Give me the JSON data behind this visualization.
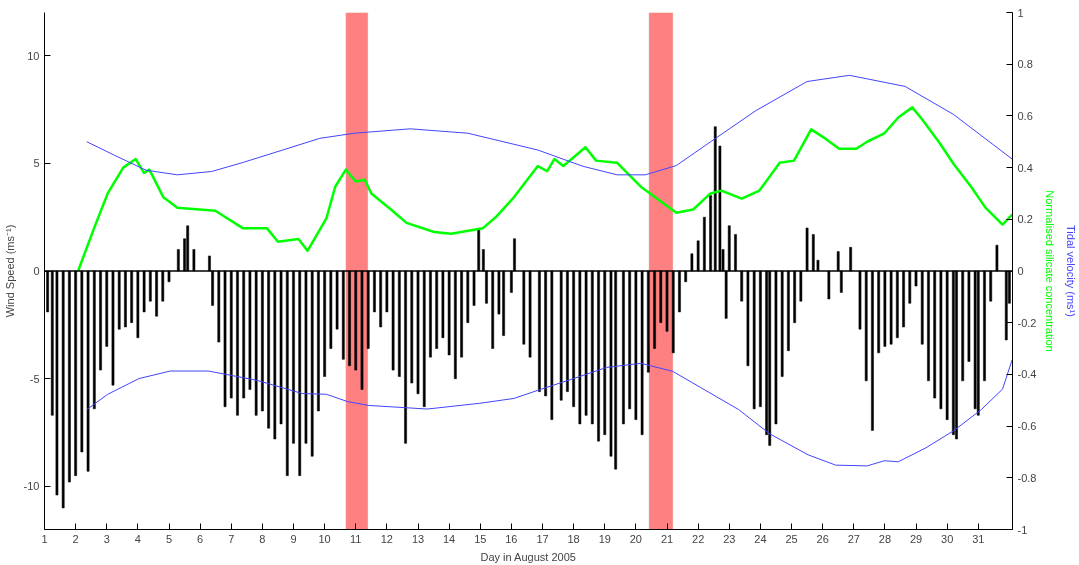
{
  "chart_data": {
    "type": "line",
    "xlabel": "Day in August 2005",
    "ylabel": "Wind Speed (ms⁻¹)",
    "y2label": "Normalised silicate concentration",
    "annotations": [
      "Tidal velocity (ms¹)"
    ],
    "xlim": [
      1,
      32.1
    ],
    "xticks": [
      1,
      2,
      3,
      4,
      5,
      6,
      7,
      8,
      9,
      10,
      11,
      12,
      13,
      14,
      15,
      16,
      17,
      18,
      19,
      20,
      21,
      22,
      23,
      24,
      25,
      26,
      27,
      28,
      29,
      30,
      31
    ],
    "ylim": [
      -12,
      12
    ],
    "yticks": [
      -10,
      -5,
      0,
      5,
      10
    ],
    "y2lim": [
      -1,
      1
    ],
    "y2ticks": [
      -1,
      -0.8,
      -0.6,
      -0.4,
      -0.2,
      0,
      0.2,
      0.4,
      0.6,
      0.8,
      1
    ],
    "grid": false,
    "ref_lines": [
      {
        "axis": "y",
        "value": 0,
        "color": "#000000"
      }
    ],
    "bands": [
      {
        "axis": "x",
        "from": 10.68,
        "to": 11.39,
        "color": "#ff8080"
      },
      {
        "axis": "x",
        "from": 20.42,
        "to": 21.19,
        "color": "#ff8080"
      }
    ],
    "series": [
      {
        "type": "bar",
        "color": "#000000",
        "x": [
          1.1,
          1.25,
          1.4,
          1.6,
          1.8,
          2.0,
          2.2,
          2.4,
          2.6,
          2.8,
          3.0,
          3.2,
          3.4,
          3.6,
          3.8,
          4.0,
          4.2,
          4.4,
          4.6,
          4.8,
          5.0,
          5.3,
          5.5,
          5.6,
          5.8,
          6.3,
          6.4,
          6.6,
          6.8,
          7.0,
          7.2,
          7.4,
          7.6,
          7.8,
          8.0,
          8.2,
          8.4,
          8.6,
          8.8,
          9.0,
          9.2,
          9.4,
          9.6,
          9.8,
          10.0,
          10.2,
          10.4,
          10.6,
          10.8,
          11.0,
          11.2,
          11.4,
          11.6,
          11.8,
          12.0,
          12.2,
          12.4,
          12.6,
          12.8,
          13.0,
          13.2,
          13.4,
          13.6,
          13.8,
          14.0,
          14.2,
          14.4,
          14.6,
          14.8,
          14.95,
          15.1,
          15.2,
          15.4,
          15.6,
          15.75,
          16.0,
          16.1,
          16.4,
          16.6,
          16.9,
          17.1,
          17.3,
          17.6,
          17.8,
          18.0,
          18.2,
          18.4,
          18.6,
          18.8,
          19.0,
          19.2,
          19.35,
          19.6,
          19.8,
          20.0,
          20.2,
          20.4,
          20.6,
          20.8,
          21.0,
          21.2,
          21.4,
          21.6,
          21.8,
          22.0,
          22.2,
          22.4,
          22.55,
          22.7,
          22.8,
          22.9,
          23.0,
          23.2,
          23.4,
          23.6,
          23.8,
          24.0,
          24.2,
          24.3,
          24.5,
          24.7,
          24.9,
          25.1,
          25.3,
          25.5,
          25.7,
          25.85,
          26.2,
          26.5,
          26.6,
          26.9,
          27.2,
          27.4,
          27.6,
          27.8,
          28.0,
          28.2,
          28.4,
          28.6,
          28.8,
          29.0,
          29.2,
          29.4,
          29.6,
          29.8,
          30.0,
          30.2,
          30.3,
          30.5,
          30.7,
          30.9,
          31.0,
          31.2,
          31.4,
          31.6,
          31.9,
          32.0
        ],
        "values": [
          -1.9,
          -6.7,
          -10.4,
          -11.0,
          -9.8,
          -9.5,
          -8.4,
          -9.3,
          -6.4,
          -4.6,
          -3.5,
          -5.3,
          -2.7,
          -2.6,
          -2.4,
          -3.1,
          -1.9,
          -1.4,
          -2.1,
          -1.4,
          -0.5,
          1.0,
          1.5,
          2.1,
          1.0,
          0.7,
          -1.6,
          -3.3,
          -6.3,
          -5.9,
          -6.7,
          -5.9,
          -5.5,
          -6.7,
          -6.5,
          -7.3,
          -7.8,
          -7.1,
          -9.5,
          -8.0,
          -9.5,
          -8.0,
          -8.6,
          -6.5,
          -4.9,
          -3.6,
          -2.7,
          -4.1,
          -4.4,
          -4.6,
          -5.5,
          -3.6,
          -1.9,
          -2.6,
          -1.9,
          -4.6,
          -4.9,
          -8.0,
          -5.2,
          -5.7,
          -6.3,
          -4.0,
          -3.6,
          -3.1,
          -3.9,
          -5.0,
          -4.0,
          -2.4,
          -1.6,
          1.9,
          1.0,
          -1.5,
          -3.6,
          -2.0,
          -3.0,
          -1.0,
          1.5,
          -3.4,
          -4.0,
          -5.6,
          -5.8,
          -6.9,
          -6.0,
          -5.6,
          -6.3,
          -7.1,
          -6.7,
          -7.1,
          -7.9,
          -7.6,
          -8.6,
          -9.2,
          -7.1,
          -6.4,
          -6.9,
          -7.6,
          -4.7,
          -3.6,
          -2.4,
          -2.8,
          -3.8,
          -1.9,
          -0.5,
          0.8,
          1.4,
          2.5,
          3.5,
          6.7,
          5.8,
          1.0,
          -2.2,
          2.1,
          1.7,
          -1.4,
          -4.4,
          -6.4,
          -6.3,
          -7.6,
          -8.1,
          -7.1,
          -4.9,
          -3.7,
          -2.4,
          -1.4,
          2.0,
          1.7,
          0.5,
          -1.3,
          0.9,
          -1.0,
          1.1,
          -2.7,
          -5.1,
          -7.4,
          -3.8,
          -3.5,
          -3.4,
          -3.1,
          -2.6,
          -1.5,
          -0.7,
          -3.4,
          -5.1,
          -5.9,
          -6.4,
          -6.9,
          -7.6,
          -7.8,
          -5.1,
          -4.2,
          -6.4,
          -6.7,
          -5.1,
          -1.4,
          1.2,
          -3.2,
          -1.5
        ]
      },
      {
        "axis": "y2",
        "color": "#00ff00",
        "x": [
          2.08,
          2.59,
          3.03,
          3.53,
          3.93,
          4.2,
          4.37,
          4.82,
          5.27,
          6.49,
          7.38,
          8.15,
          8.5,
          9.16,
          9.45,
          10.06,
          10.34,
          10.68,
          11.0,
          11.29,
          11.5,
          12.18,
          12.63,
          13.52,
          14.07,
          15.08,
          15.53,
          16.08,
          16.85,
          17.15,
          17.38,
          17.67,
          18.38,
          18.72,
          19.39,
          20.16,
          21.3,
          21.84,
          22.4,
          22.75,
          23.4,
          23.97,
          24.62,
          25.08,
          25.63,
          26.08,
          26.53,
          27.08,
          27.43,
          27.98,
          28.43,
          28.88,
          29.2,
          29.77,
          30.22,
          30.77,
          31.23,
          31.78,
          32.09
        ],
        "values": [
          0,
          0.165,
          0.3,
          0.4,
          0.433,
          0.379,
          0.392,
          0.285,
          0.245,
          0.233,
          0.165,
          0.165,
          0.113,
          0.124,
          0.078,
          0.205,
          0.326,
          0.392,
          0.346,
          0.353,
          0.3,
          0.233,
          0.186,
          0.151,
          0.144,
          0.165,
          0.212,
          0.285,
          0.406,
          0.386,
          0.433,
          0.406,
          0.479,
          0.427,
          0.419,
          0.326,
          0.225,
          0.238,
          0.3,
          0.311,
          0.28,
          0.311,
          0.419,
          0.427,
          0.548,
          0.513,
          0.473,
          0.473,
          0.5,
          0.532,
          0.594,
          0.633,
          0.586,
          0.493,
          0.412,
          0.326,
          0.245,
          0.179,
          0.218
        ]
      },
      {
        "axis": "y2",
        "color": "#4444ff",
        "x": [
          2.36,
          3.26,
          4.26,
          5.27,
          6.37,
          7.38,
          8.6,
          9.84,
          10.95,
          12.75,
          14.6,
          16.85,
          18.3,
          19.4,
          20.3,
          21.3,
          22.4,
          23.85,
          25.5,
          26.86,
          28.65,
          30.2,
          32.1
        ],
        "values": [
          0.5,
          0.447,
          0.39,
          0.372,
          0.385,
          0.42,
          0.466,
          0.513,
          0.533,
          0.55,
          0.533,
          0.468,
          0.405,
          0.372,
          0.372,
          0.408,
          0.5,
          0.62,
          0.733,
          0.757,
          0.714,
          0.606,
          0.432
        ]
      },
      {
        "axis": "y2",
        "color": "#4444ff",
        "x": [
          2.36,
          3.03,
          4.04,
          5.04,
          6.27,
          7.83,
          9.28,
          10.06,
          10.73,
          11.4,
          13.3,
          14.97,
          16.08,
          16.84,
          18.15,
          19.06,
          20.16,
          21.18,
          22.07,
          23.3,
          24.3,
          25.53,
          26.42,
          27.43,
          27.98,
          28.43,
          29.32,
          30.22,
          31.1,
          31.78,
          32.09
        ],
        "values": [
          -0.536,
          -0.477,
          -0.416,
          -0.387,
          -0.387,
          -0.423,
          -0.474,
          -0.477,
          -0.505,
          -0.52,
          -0.534,
          -0.512,
          -0.493,
          -0.462,
          -0.41,
          -0.373,
          -0.357,
          -0.388,
          -0.45,
          -0.536,
          -0.63,
          -0.711,
          -0.751,
          -0.754,
          -0.734,
          -0.738,
          -0.684,
          -0.617,
          -0.536,
          -0.457,
          -0.343
        ]
      }
    ]
  }
}
